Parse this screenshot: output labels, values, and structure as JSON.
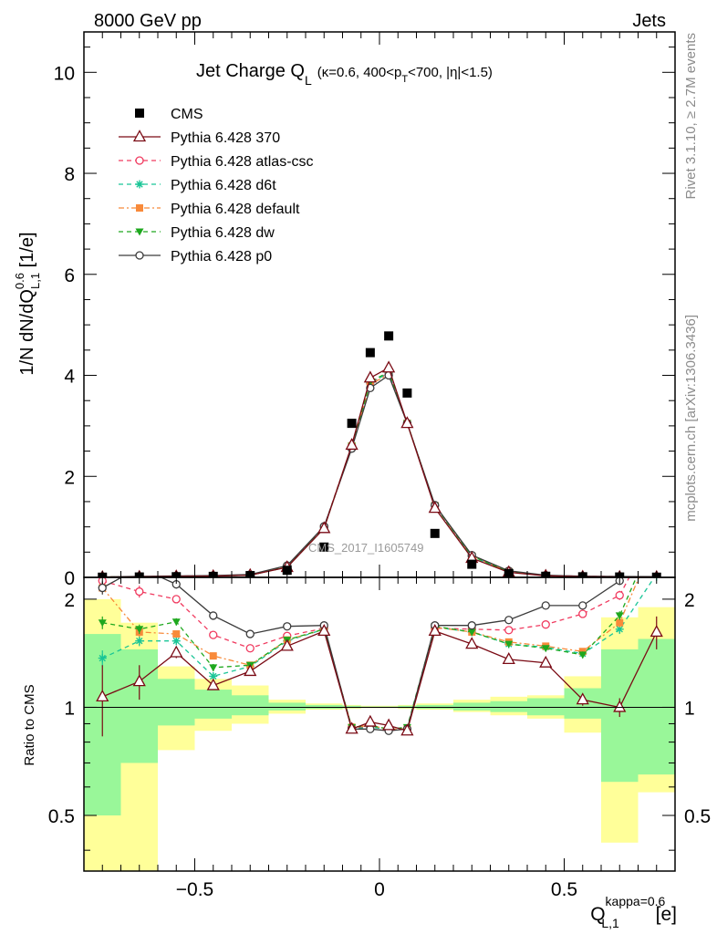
{
  "header": {
    "left": "8000 GeV pp",
    "right": "Jets"
  },
  "side_labels": {
    "rivet": "Rivet 3.1.10, ≥ 2.7M events",
    "mcplots": "mcplots.cern.ch [arXiv:1306.3436]"
  },
  "chart_data": {
    "type": "line",
    "title": {
      "main": "Jet Charge Q",
      "main_sub": "L",
      "cond_a": "(κ=0.6, 400<p",
      "cond_sub": "T",
      "cond_b": "<700, |η|<1.5)"
    },
    "watermark": "CMS_2017_I1605749",
    "x": [
      -0.75,
      -0.65,
      -0.55,
      -0.45,
      -0.35,
      -0.25,
      -0.15,
      -0.075,
      -0.025,
      0.025,
      0.075,
      0.15,
      0.25,
      0.35,
      0.45,
      0.55,
      0.65,
      0.75
    ],
    "xlim": [
      -0.8,
      0.8
    ],
    "bin_edges": [
      -0.8,
      -0.7,
      -0.6,
      -0.5,
      -0.4,
      -0.3,
      -0.2,
      -0.1,
      -0.05,
      0,
      0.05,
      0.1,
      0.2,
      0.3,
      0.4,
      0.5,
      0.6,
      0.7,
      0.8
    ],
    "main": {
      "ylabel": "1/N dN/dQ",
      "ylabel_sup": "0.6",
      "ylabel_sub": "L,1",
      "ylabel_unit": " [1/e]",
      "ylim": [
        0,
        10.8
      ],
      "yticks": [
        "0",
        "2",
        "4",
        "6",
        "8",
        "10"
      ],
      "ytick_values": [
        0,
        2,
        4,
        6,
        8,
        10
      ]
    },
    "ratio": {
      "ylabel": "Ratio to CMS",
      "log": true,
      "ylim": [
        0.35,
        2.3
      ],
      "yticks": [
        "0.5",
        "1",
        "2"
      ],
      "ytick_values": [
        0.5,
        1,
        2
      ],
      "band_inner_low": [
        0.5,
        0.7,
        0.89,
        0.93,
        0.95,
        0.98,
        0.99,
        0.995,
        0.998,
        0.998,
        0.995,
        0.99,
        0.98,
        0.97,
        0.95,
        0.93,
        0.62,
        0.65
      ],
      "band_inner_high": [
        1.6,
        1.45,
        1.2,
        1.12,
        1.08,
        1.03,
        1.015,
        1.01,
        1.005,
        1.005,
        1.01,
        1.015,
        1.03,
        1.04,
        1.06,
        1.13,
        1.45,
        1.55
      ],
      "band_outer_low": [
        0.35,
        0.35,
        0.76,
        0.86,
        0.9,
        0.96,
        0.985,
        0.99,
        0.995,
        0.995,
        0.99,
        0.985,
        0.97,
        0.95,
        0.93,
        0.85,
        0.42,
        0.58
      ],
      "band_outer_high": [
        2.0,
        1.72,
        1.3,
        1.2,
        1.15,
        1.05,
        1.025,
        1.015,
        1.01,
        1.01,
        1.015,
        1.025,
        1.05,
        1.07,
        1.08,
        1.22,
        1.78,
        1.9
      ]
    },
    "xlabel": "Q",
    "xlabel_sup": "kappa=0.6",
    "xlabel_sub": "L,1",
    "xlabel_unit": " [e]",
    "xticks": [
      "−0.5",
      "0",
      "0.5"
    ],
    "xtick_values": [
      -0.5,
      0,
      0.5
    ],
    "data_series": {
      "name": "CMS",
      "values": [
        0.004,
        0.008,
        0.013,
        0.02,
        0.035,
        0.14,
        0.6,
        3.05,
        4.45,
        4.78,
        3.65,
        0.87,
        0.26,
        0.075,
        0.022,
        0.012,
        0.008,
        0.004
      ]
    },
    "series": [
      {
        "name": "Pythia 6.428 370",
        "color": "#7a0a14",
        "dash": "solid",
        "marker": "triangle-open",
        "values": [
          0.0044,
          0.0095,
          0.0185,
          0.023,
          0.044,
          0.2,
          0.97,
          2.62,
          3.95,
          4.15,
          3.05,
          1.37,
          0.38,
          0.1,
          0.03,
          0.0126,
          0.008,
          0.0066
        ],
        "ratio": [
          1.07,
          1.18,
          1.42,
          1.15,
          1.26,
          1.48,
          1.63,
          0.87,
          0.91,
          0.89,
          0.86,
          1.63,
          1.5,
          1.36,
          1.33,
          1.05,
          1.0,
          1.62
        ],
        "ratio_err": [
          0.24,
          0.13,
          0.05,
          0.03,
          0.01,
          0.01,
          0.005,
          0.004,
          0.003,
          0.003,
          0.004,
          0.005,
          0.01,
          0.01,
          0.02,
          0.04,
          0.06,
          0.17
        ]
      },
      {
        "name": "Pythia 6.428 atlas-csc",
        "color": "#f03a5f",
        "dash": "5,4",
        "marker": "circle-open",
        "values": [
          0.009,
          0.017,
          0.026,
          0.032,
          0.05,
          0.22,
          1.0,
          2.6,
          3.85,
          4.05,
          3.05,
          1.42,
          0.42,
          0.12,
          0.037,
          0.022,
          0.016,
          0.013
        ],
        "ratio": [
          2.25,
          2.1,
          2.0,
          1.59,
          1.46,
          1.58,
          1.66,
          0.88,
          0.88,
          0.87,
          0.87,
          1.66,
          1.65,
          1.64,
          1.7,
          1.82,
          2.05,
          3.2
        ],
        "ratio_err": [
          0.09,
          0.08,
          0.04,
          0.03,
          0.01,
          0.01,
          0.005,
          0.004,
          0.003,
          0.003,
          0.004,
          0.005,
          0.01,
          0.01,
          0.02,
          0.03,
          0.06,
          0.1
        ]
      },
      {
        "name": "Pythia 6.428 d6t",
        "color": "#19c596",
        "dash": "5,4",
        "marker": "star",
        "values": [
          0.0055,
          0.012,
          0.02,
          0.025,
          0.045,
          0.2,
          0.98,
          2.6,
          3.85,
          4.05,
          3.05,
          1.42,
          0.41,
          0.11,
          0.033,
          0.017,
          0.013,
          0.0095
        ],
        "ratio": [
          1.37,
          1.53,
          1.53,
          1.22,
          1.3,
          1.53,
          1.65,
          0.87,
          0.88,
          0.87,
          0.87,
          1.67,
          1.62,
          1.5,
          1.47,
          1.41,
          1.65,
          2.35
        ],
        "ratio_err": [
          0.07,
          0.05,
          0.04,
          0.03,
          0.01,
          0.01,
          0.005,
          0.004,
          0.003,
          0.003,
          0.004,
          0.005,
          0.01,
          0.01,
          0.02,
          0.03,
          0.05,
          0.1
        ]
      },
      {
        "name": "Pythia 6.428 default",
        "color": "#f88a3a",
        "dash": "6,3,2,3",
        "marker": "square",
        "values": [
          0.0086,
          0.013,
          0.021,
          0.028,
          0.046,
          0.205,
          0.98,
          2.6,
          3.82,
          4.02,
          3.05,
          1.42,
          0.42,
          0.115,
          0.035,
          0.017,
          0.014,
          0.012
        ],
        "ratio": [
          2.15,
          1.62,
          1.6,
          1.39,
          1.31,
          1.54,
          1.65,
          0.88,
          0.89,
          0.87,
          0.87,
          1.67,
          1.62,
          1.52,
          1.48,
          1.43,
          1.72,
          3.0
        ],
        "ratio_err": [
          0.07,
          0.05,
          0.03,
          0.03,
          0.01,
          0.01,
          0.005,
          0.004,
          0.003,
          0.003,
          0.004,
          0.005,
          0.01,
          0.01,
          0.02,
          0.03,
          0.05,
          0.1
        ]
      },
      {
        "name": "Pythia 6.428 dw",
        "color": "#1ea81e",
        "dash": "5,4",
        "marker": "triangle-down",
        "values": [
          0.007,
          0.013,
          0.023,
          0.026,
          0.046,
          0.205,
          0.98,
          2.6,
          3.87,
          4.07,
          3.05,
          1.42,
          0.42,
          0.11,
          0.033,
          0.017,
          0.015,
          0.012
        ],
        "ratio": [
          1.72,
          1.65,
          1.73,
          1.29,
          1.31,
          1.54,
          1.65,
          0.88,
          0.89,
          0.87,
          0.88,
          1.68,
          1.62,
          1.5,
          1.46,
          1.4,
          1.8,
          3.1
        ],
        "ratio_err": [
          0.07,
          0.05,
          0.04,
          0.03,
          0.01,
          0.01,
          0.005,
          0.004,
          0.003,
          0.003,
          0.004,
          0.005,
          0.01,
          0.01,
          0.02,
          0.03,
          0.05,
          0.1
        ]
      },
      {
        "name": "Pythia 6.428 p0",
        "color": "#3c3c3c",
        "dash": "solid",
        "marker": "circle-open",
        "values": [
          0.0086,
          0.019,
          0.029,
          0.036,
          0.056,
          0.235,
          1.01,
          2.55,
          3.75,
          4.0,
          3.05,
          1.43,
          0.44,
          0.13,
          0.043,
          0.023,
          0.018,
          0.014
        ],
        "ratio": [
          2.15,
          2.45,
          2.2,
          1.8,
          1.6,
          1.68,
          1.69,
          0.87,
          0.87,
          0.86,
          0.87,
          1.69,
          1.69,
          1.75,
          1.92,
          1.92,
          2.25,
          3.5
        ],
        "ratio_err": [
          0.09,
          0.08,
          0.06,
          0.03,
          0.01,
          0.01,
          0.005,
          0.004,
          0.003,
          0.003,
          0.004,
          0.005,
          0.01,
          0.01,
          0.02,
          0.03,
          0.06,
          0.1
        ]
      }
    ]
  }
}
